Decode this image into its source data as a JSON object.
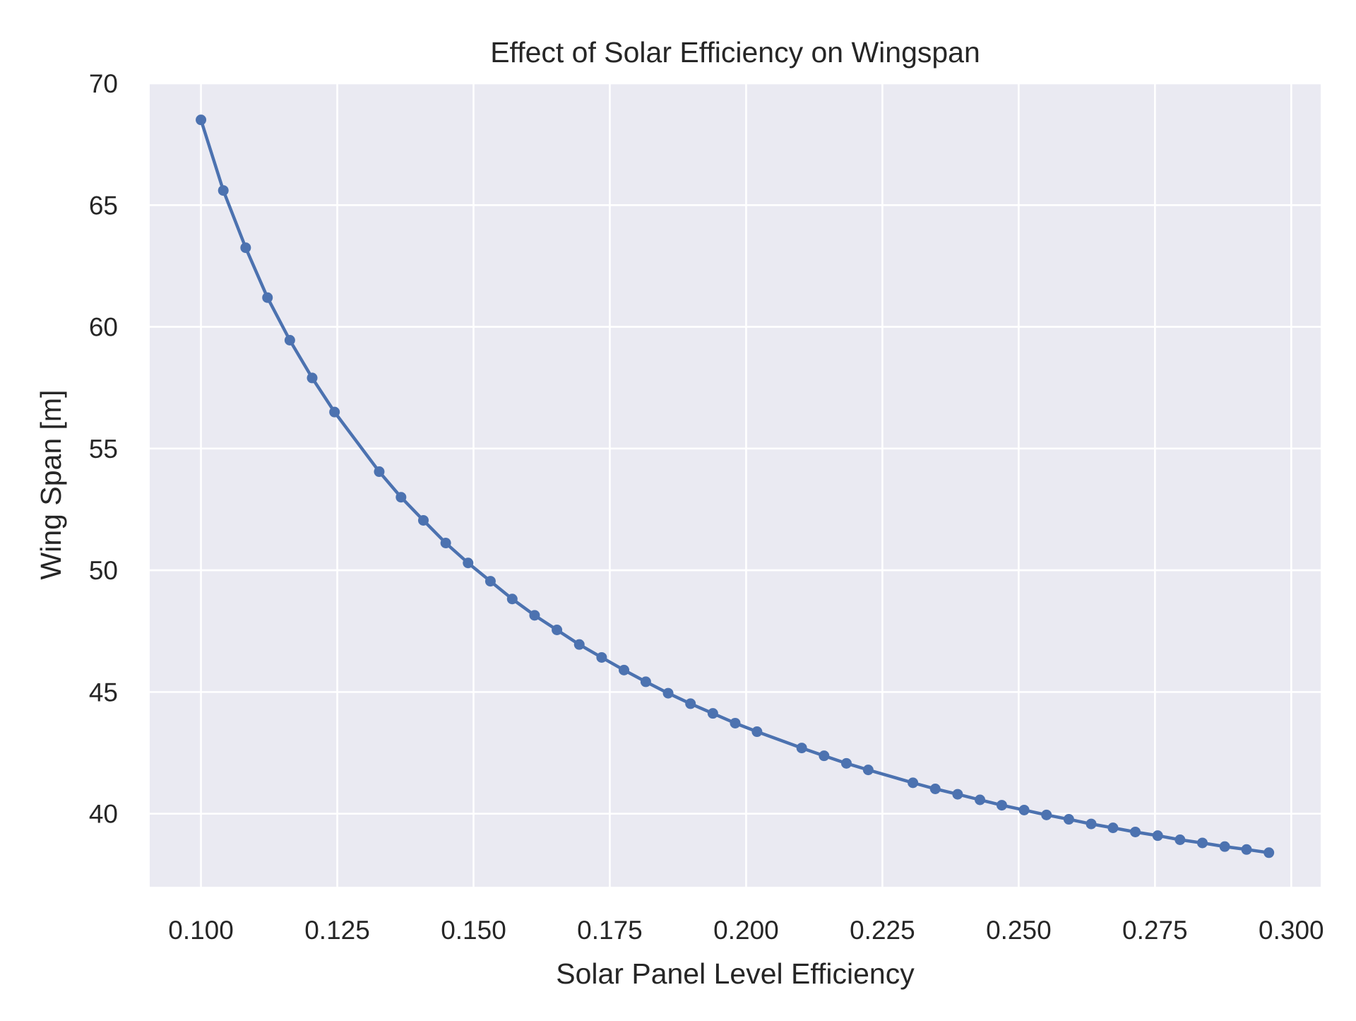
{
  "chart_data": {
    "type": "line",
    "title": "Effect of Solar Efficiency on Wingspan",
    "xlabel": "Solar Panel Level Efficiency",
    "ylabel": "Wing Span [m]",
    "xlim": [
      0.0906,
      0.3054
    ],
    "ylim": [
      37.0,
      70.0
    ],
    "xticks": [
      0.1,
      0.125,
      0.15,
      0.175,
      0.2,
      0.225,
      0.25,
      0.275,
      0.3
    ],
    "xtick_labels": [
      "0.100",
      "0.125",
      "0.150",
      "0.175",
      "0.200",
      "0.225",
      "0.250",
      "0.275",
      "0.300"
    ],
    "yticks": [
      40,
      45,
      50,
      55,
      60,
      65,
      70
    ],
    "ytick_labels": [
      "40",
      "45",
      "50",
      "55",
      "60",
      "65",
      "70"
    ],
    "grid": true,
    "legend": "none",
    "colors": {
      "line": "#4c72b0",
      "plot_background": "#eaeaf2",
      "grid": "#ffffff",
      "text": "#262626"
    },
    "series": [
      {
        "markers": true,
        "x": [
          0.1,
          0.1041,
          0.1082,
          0.1122,
          0.1163,
          0.1204,
          0.1245,
          0.1327,
          0.1367,
          0.1408,
          0.1449,
          0.149,
          0.1531,
          0.1571,
          0.1612,
          0.1653,
          0.1694,
          0.1735,
          0.1776,
          0.1816,
          0.1857,
          0.1898,
          0.1939,
          0.198,
          0.202,
          0.2102,
          0.2143,
          0.2184,
          0.2224,
          0.2306,
          0.2347,
          0.2388,
          0.2429,
          0.2469,
          0.251,
          0.2551,
          0.2592,
          0.2633,
          0.2673,
          0.2714,
          0.2755,
          0.2796,
          0.2837,
          0.2878,
          0.2918,
          0.2959
        ],
        "y": [
          68.5,
          65.6,
          63.25,
          61.2,
          59.45,
          57.9,
          56.5,
          54.05,
          53.0,
          52.05,
          51.12,
          50.3,
          49.55,
          48.82,
          48.15,
          47.55,
          46.95,
          46.42,
          45.9,
          45.42,
          44.95,
          44.52,
          44.12,
          43.72,
          43.37,
          42.7,
          42.38,
          42.07,
          41.8,
          41.27,
          41.02,
          40.8,
          40.57,
          40.35,
          40.15,
          39.95,
          39.77,
          39.58,
          39.42,
          39.25,
          39.1,
          38.93,
          38.8,
          38.65,
          38.53,
          38.4
        ]
      }
    ]
  }
}
